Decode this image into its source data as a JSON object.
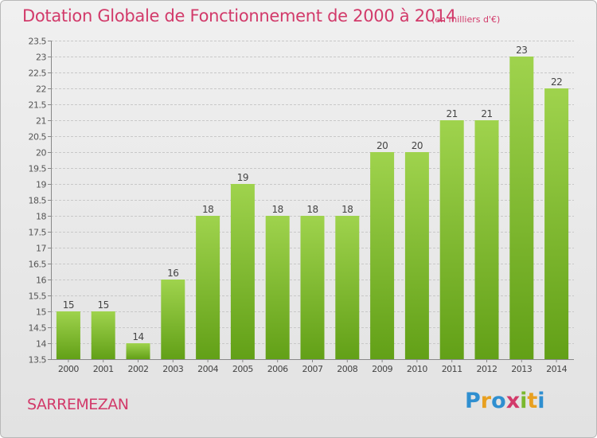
{
  "header": {
    "title": "Dotation Globale de Fonctionnement de 2000 à 2014",
    "unit": "(en milliers d'€)"
  },
  "footer": {
    "commune": "SARREMEZAN",
    "logo_text": "Proxiti",
    "logo_letters": [
      {
        "ch": "P",
        "color": "#2f8fd0"
      },
      {
        "ch": "r",
        "color": "#e8a020"
      },
      {
        "ch": "o",
        "color": "#2f8fd0"
      },
      {
        "ch": "x",
        "color": "#d23a6a"
      },
      {
        "ch": "i",
        "color": "#7ab82e"
      },
      {
        "ch": "t",
        "color": "#e8a020"
      },
      {
        "ch": "i",
        "color": "#2f8fd0"
      }
    ]
  },
  "colors": {
    "bar_light": "#9fd34d",
    "bar_dark": "#62a017",
    "title": "#d23a6a"
  },
  "chart_data": {
    "type": "bar",
    "title": "Dotation Globale de Fonctionnement de 2000 à 2014",
    "subtitle": "(en milliers d'€)",
    "xlabel": "",
    "ylabel": "",
    "categories": [
      "2000",
      "2001",
      "2002",
      "2003",
      "2004",
      "2005",
      "2006",
      "2007",
      "2008",
      "2009",
      "2010",
      "2011",
      "2012",
      "2013",
      "2014"
    ],
    "values": [
      15,
      15,
      14,
      16,
      18,
      19,
      18,
      18,
      18,
      20,
      20,
      21,
      21,
      23,
      22
    ],
    "ylim": [
      13.5,
      23.5
    ],
    "yticks": [
      "13.5",
      "14",
      "14.5",
      "15",
      "15.5",
      "16",
      "16.5",
      "17",
      "17.5",
      "18",
      "18.5",
      "19",
      "19.5",
      "20",
      "20.5",
      "21",
      "21.5",
      "22",
      "22.5",
      "23",
      "23.5"
    ],
    "grid": true,
    "legend": "none"
  }
}
